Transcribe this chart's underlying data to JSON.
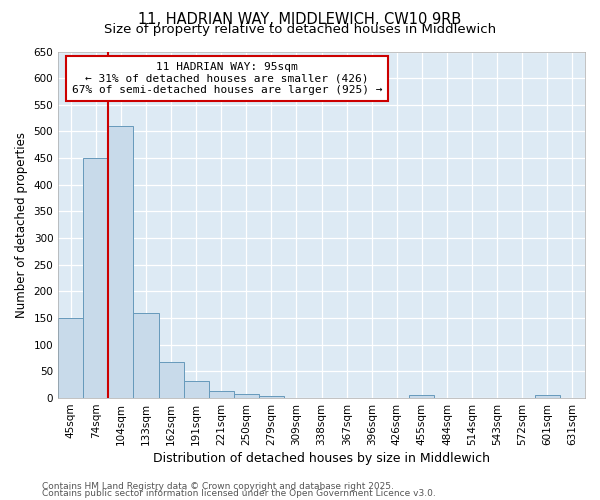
{
  "title1": "11, HADRIAN WAY, MIDDLEWICH, CW10 9RB",
  "title2": "Size of property relative to detached houses in Middlewich",
  "xlabel": "Distribution of detached houses by size in Middlewich",
  "ylabel": "Number of detached properties",
  "categories": [
    "45sqm",
    "74sqm",
    "104sqm",
    "133sqm",
    "162sqm",
    "191sqm",
    "221sqm",
    "250sqm",
    "279sqm",
    "309sqm",
    "338sqm",
    "367sqm",
    "396sqm",
    "426sqm",
    "455sqm",
    "484sqm",
    "514sqm",
    "543sqm",
    "572sqm",
    "601sqm",
    "631sqm"
  ],
  "values": [
    150,
    450,
    510,
    160,
    68,
    32,
    13,
    8,
    4,
    0,
    0,
    0,
    0,
    0,
    5,
    0,
    0,
    0,
    0,
    5,
    0
  ],
  "bar_color": "#c8daea",
  "bar_edge_color": "#6699bb",
  "vline_x_index": 2,
  "vline_color": "#cc0000",
  "annotation_box_text": "11 HADRIAN WAY: 95sqm\n← 31% of detached houses are smaller (426)\n67% of semi-detached houses are larger (925) →",
  "annotation_box_color": "#cc0000",
  "ylim": [
    0,
    650
  ],
  "yticks": [
    0,
    50,
    100,
    150,
    200,
    250,
    300,
    350,
    400,
    450,
    500,
    550,
    600,
    650
  ],
  "footnote1": "Contains HM Land Registry data © Crown copyright and database right 2025.",
  "footnote2": "Contains public sector information licensed under the Open Government Licence v3.0.",
  "fig_bg_color": "#ffffff",
  "plot_bg_color": "#ddeaf4",
  "title1_fontsize": 10.5,
  "title2_fontsize": 9.5,
  "xlabel_fontsize": 9,
  "ylabel_fontsize": 8.5,
  "tick_fontsize": 7.5,
  "ann_fontsize": 8,
  "footnote_fontsize": 6.5
}
